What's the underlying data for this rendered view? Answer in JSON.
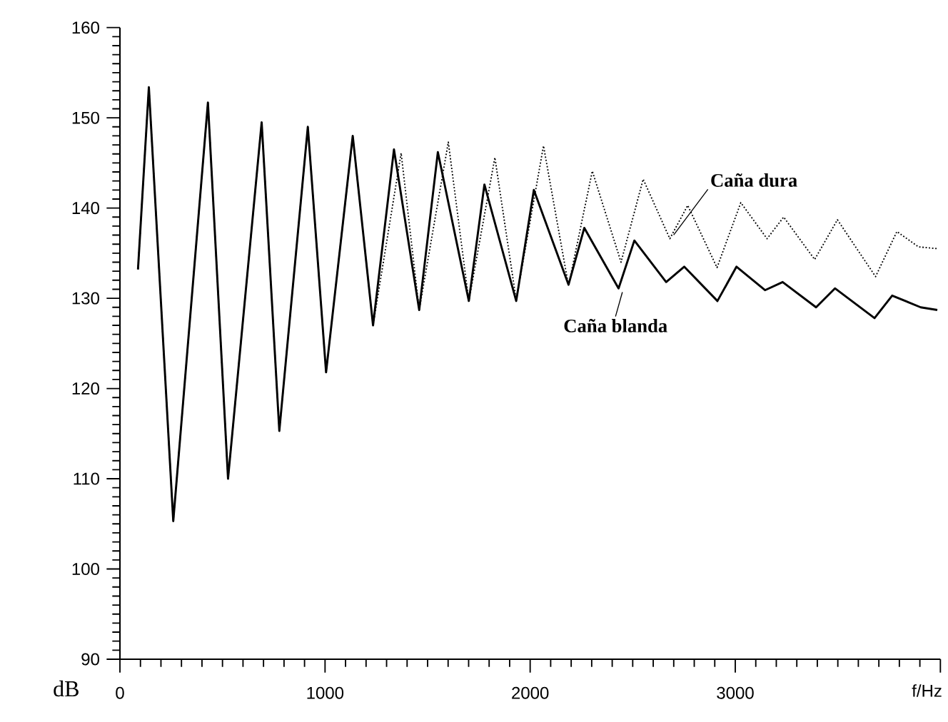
{
  "chart_data": {
    "type": "line",
    "xlabel": "f/Hz",
    "ylabel": "dB",
    "xlim": [
      0,
      4000
    ],
    "ylim": [
      90,
      160
    ],
    "xticks": [
      0,
      1000,
      2000,
      3000,
      {
        "value": 4000,
        "label": null
      }
    ],
    "yticks": [
      90,
      100,
      110,
      120,
      130,
      140,
      150,
      160
    ],
    "grid": false,
    "series": [
      {
        "name": "Caña dura",
        "color": "#000000",
        "line_style": "dotted",
        "x": [
          88,
          141,
          260,
          429,
          527,
          691,
          777,
          916,
          1005,
          1135,
          1234,
          1371,
          1459,
          1601,
          1701,
          1828,
          1932,
          2065,
          2187,
          2303,
          2443,
          2551,
          2681,
          2768,
          2911,
          3027,
          3155,
          3236,
          3387,
          3498,
          3684,
          3788,
          3893,
          3985
        ],
        "values": [
          133.2,
          153.4,
          105.3,
          151.7,
          110,
          149.5,
          115.3,
          149,
          121.8,
          148,
          127,
          146.1,
          128.7,
          147.3,
          129.7,
          145.6,
          129.8,
          146.9,
          131.4,
          144.1,
          134,
          143.2,
          136.6,
          140.3,
          133.4,
          140.6,
          136.6,
          139,
          134.3,
          138.7,
          132.4,
          137.4,
          135.7,
          135.5
        ]
      },
      {
        "name": "Caña blanda",
        "color": "#000000",
        "line_style": "solid",
        "x": [
          88,
          141,
          260,
          429,
          527,
          691,
          777,
          916,
          1005,
          1135,
          1234,
          1336,
          1459,
          1550,
          1701,
          1777,
          1932,
          2018,
          2187,
          2264,
          2431,
          2508,
          2663,
          2751,
          2913,
          3006,
          3145,
          3231,
          3394,
          3486,
          3679,
          3765,
          3904,
          3985
        ],
        "values": [
          133.2,
          153.4,
          105.3,
          151.7,
          110,
          149.5,
          115.3,
          149,
          121.8,
          148,
          127,
          146.5,
          128.7,
          146.2,
          129.7,
          142.6,
          129.7,
          142,
          131.5,
          137.8,
          131.1,
          136.4,
          131.8,
          133.5,
          129.7,
          133.5,
          130.9,
          131.8,
          129,
          131.1,
          127.8,
          130.3,
          129,
          128.7
        ]
      }
    ]
  }
}
